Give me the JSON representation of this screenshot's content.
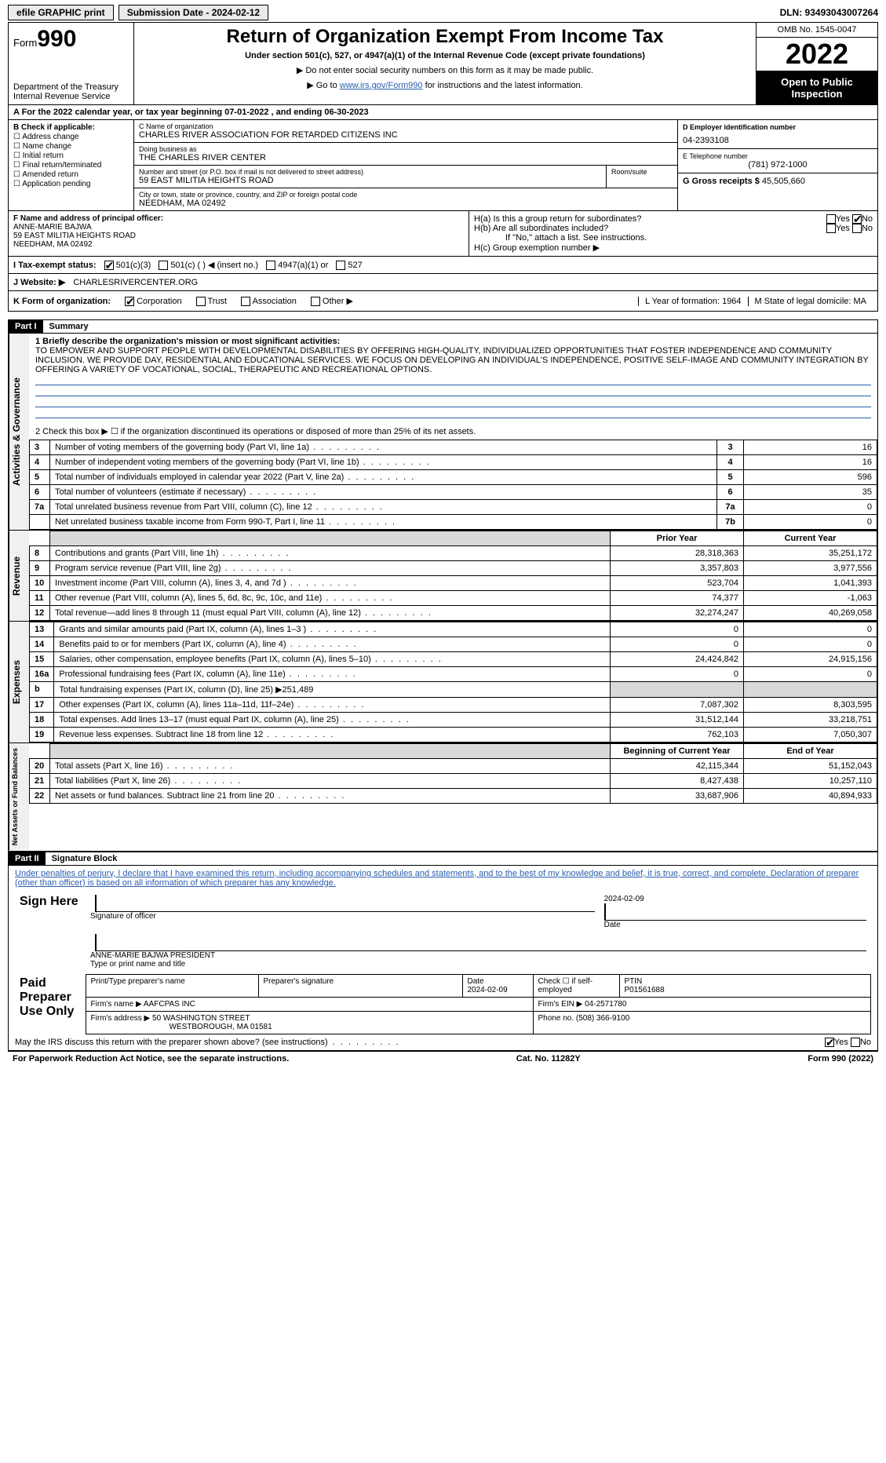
{
  "topbar": {
    "efile": "efile GRAPHIC print",
    "submission_label": "Submission Date - 2024-02-12",
    "dln": "DLN: 93493043007264"
  },
  "header": {
    "form_word": "Form",
    "form_num": "990",
    "dept": "Department of the Treasury",
    "irs": "Internal Revenue Service",
    "title": "Return of Organization Exempt From Income Tax",
    "sub": "Under section 501(c), 527, or 4947(a)(1) of the Internal Revenue Code (except private foundations)",
    "arrow1": "▶ Do not enter social security numbers on this form as it may be made public.",
    "arrow2_pre": "▶ Go to ",
    "arrow2_link": "www.irs.gov/Form990",
    "arrow2_post": " for instructions and the latest information.",
    "omb": "OMB No. 1545-0047",
    "year": "2022",
    "opi": "Open to Public Inspection"
  },
  "cal": "A  For the 2022 calendar year, or tax year beginning 07-01-2022    , and ending 06-30-2023",
  "boxB": {
    "title": "B Check if applicable:",
    "opts": [
      "Address change",
      "Name change",
      "Initial return",
      "Final return/terminated",
      "Amended return",
      "Application pending"
    ]
  },
  "boxC": {
    "name_lbl": "C Name of organization",
    "name": "CHARLES RIVER ASSOCIATION FOR RETARDED CITIZENS INC",
    "dba_lbl": "Doing business as",
    "dba": "THE CHARLES RIVER CENTER",
    "addr_lbl": "Number and street (or P.O. box if mail is not delivered to street address)",
    "addr": "59 EAST MILITIA HEIGHTS ROAD",
    "room_lbl": "Room/suite",
    "city_lbl": "City or town, state or province, country, and ZIP or foreign postal code",
    "city": "NEEDHAM, MA  02492"
  },
  "boxD": {
    "lbl": "D Employer identification number",
    "val": "04-2393108"
  },
  "boxE": {
    "lbl": "E Telephone number",
    "val": "(781) 972-1000"
  },
  "boxG": {
    "lbl": "G Gross receipts $",
    "val": "45,505,660"
  },
  "boxF": {
    "lbl": "F Name and address of principal officer:",
    "l1": "ANNE-MARIE BAJWA",
    "l2": "59 EAST MILITIA HEIGHTS ROAD",
    "l3": "NEEDHAM, MA  02492"
  },
  "boxH": {
    "a": "H(a)  Is this a group return for subordinates?",
    "b": "H(b)  Are all subordinates included?",
    "ifno": "If \"No,\" attach a list. See instructions.",
    "c": "H(c)  Group exemption number ▶"
  },
  "taxstatus": {
    "lbl": "I   Tax-exempt status:",
    "o1": "501(c)(3)",
    "o2": "501(c) (  ) ◀ (insert no.)",
    "o3": "4947(a)(1) or",
    "o4": "527"
  },
  "website": {
    "lbl": "J   Website: ▶",
    "val": "CHARLESRIVERCENTER.ORG"
  },
  "korg": {
    "lbl": "K Form of organization:",
    "o1": "Corporation",
    "o2": "Trust",
    "o3": "Association",
    "o4": "Other ▶",
    "lyr": "L Year of formation: 1964",
    "mstate": "M State of legal domicile: MA"
  },
  "part1": {
    "hdr": "Part I",
    "title": "Summary"
  },
  "summary": {
    "q1": "1  Briefly describe the organization's mission or most significant activities:",
    "mission": "TO EMPOWER AND SUPPORT PEOPLE WITH DEVELOPMENTAL DISABILITIES BY OFFERING HIGH-QUALITY, INDIVIDUALIZED OPPORTUNITIES THAT FOSTER INDEPENDENCE AND COMMUNITY INCLUSION. WE PROVIDE DAY, RESIDENTIAL AND EDUCATIONAL SERVICES. WE FOCUS ON DEVELOPING AN INDIVIDUAL'S INDEPENDENCE, POSITIVE SELF-IMAGE AND COMMUNITY INTEGRATION BY OFFERING A VARIETY OF VOCATIONAL, SOCIAL, THERAPEUTIC AND RECREATIONAL OPTIONS.",
    "q2": "2   Check this box ▶ ☐  if the organization discontinued its operations or disposed of more than 25% of its net assets.",
    "rows_ag": [
      {
        "n": "3",
        "d": "Number of voting members of the governing body (Part VI, line 1a)",
        "k": "3",
        "v": "16"
      },
      {
        "n": "4",
        "d": "Number of independent voting members of the governing body (Part VI, line 1b)",
        "k": "4",
        "v": "16"
      },
      {
        "n": "5",
        "d": "Total number of individuals employed in calendar year 2022 (Part V, line 2a)",
        "k": "5",
        "v": "596"
      },
      {
        "n": "6",
        "d": "Total number of volunteers (estimate if necessary)",
        "k": "6",
        "v": "35"
      },
      {
        "n": "7a",
        "d": "Total unrelated business revenue from Part VIII, column (C), line 12",
        "k": "7a",
        "v": "0"
      },
      {
        "n": "",
        "d": "Net unrelated business taxable income from Form 990-T, Part I, line 11",
        "k": "7b",
        "v": "0"
      }
    ],
    "priorhdr": "Prior Year",
    "curhdr": "Current Year",
    "rows_rev": [
      {
        "n": "8",
        "d": "Contributions and grants (Part VIII, line 1h)",
        "p": "28,318,363",
        "c": "35,251,172"
      },
      {
        "n": "9",
        "d": "Program service revenue (Part VIII, line 2g)",
        "p": "3,357,803",
        "c": "3,977,556"
      },
      {
        "n": "10",
        "d": "Investment income (Part VIII, column (A), lines 3, 4, and 7d )",
        "p": "523,704",
        "c": "1,041,393"
      },
      {
        "n": "11",
        "d": "Other revenue (Part VIII, column (A), lines 5, 6d, 8c, 9c, 10c, and 11e)",
        "p": "74,377",
        "c": "-1,063"
      },
      {
        "n": "12",
        "d": "Total revenue—add lines 8 through 11 (must equal Part VIII, column (A), line 12)",
        "p": "32,274,247",
        "c": "40,269,058"
      }
    ],
    "rows_exp": [
      {
        "n": "13",
        "d": "Grants and similar amounts paid (Part IX, column (A), lines 1–3 )",
        "p": "0",
        "c": "0"
      },
      {
        "n": "14",
        "d": "Benefits paid to or for members (Part IX, column (A), line 4)",
        "p": "0",
        "c": "0"
      },
      {
        "n": "15",
        "d": "Salaries, other compensation, employee benefits (Part IX, column (A), lines 5–10)",
        "p": "24,424,842",
        "c": "24,915,156"
      },
      {
        "n": "16a",
        "d": "Professional fundraising fees (Part IX, column (A), line 11e)",
        "p": "0",
        "c": "0"
      },
      {
        "n": "b",
        "d": "Total fundraising expenses (Part IX, column (D), line 25) ▶251,489",
        "p": "",
        "c": "",
        "grey": true
      },
      {
        "n": "17",
        "d": "Other expenses (Part IX, column (A), lines 11a–11d, 11f–24e)",
        "p": "7,087,302",
        "c": "8,303,595"
      },
      {
        "n": "18",
        "d": "Total expenses. Add lines 13–17 (must equal Part IX, column (A), line 25)",
        "p": "31,512,144",
        "c": "33,218,751"
      },
      {
        "n": "19",
        "d": "Revenue less expenses. Subtract line 18 from line 12",
        "p": "762,103",
        "c": "7,050,307"
      }
    ],
    "bocy": "Beginning of Current Year",
    "eoy": "End of Year",
    "rows_na": [
      {
        "n": "20",
        "d": "Total assets (Part X, line 16)",
        "p": "42,115,344",
        "c": "51,152,043"
      },
      {
        "n": "21",
        "d": "Total liabilities (Part X, line 26)",
        "p": "8,427,438",
        "c": "10,257,110"
      },
      {
        "n": "22",
        "d": "Net assets or fund balances. Subtract line 21 from line 20",
        "p": "33,687,906",
        "c": "40,894,933"
      }
    ],
    "side_ag": "Activities & Governance",
    "side_rev": "Revenue",
    "side_exp": "Expenses",
    "side_na": "Net Assets or Fund Balances"
  },
  "part2": {
    "hdr": "Part II",
    "title": "Signature Block"
  },
  "sig": {
    "decl": "Under penalties of perjury, I declare that I have examined this return, including accompanying schedules and statements, and to the best of my knowledge and belief, it is true, correct, and complete. Declaration of preparer (other than officer) is based on all information of which preparer has any knowledge.",
    "sign_here": "Sign Here",
    "sig_officer": "Signature of officer",
    "date": "Date",
    "date_val": "2024-02-09",
    "name_title": "ANNE-MARIE BAJWA PRESIDENT",
    "name_title_lbl": "Type or print name and title",
    "paid": "Paid Preparer Use Only",
    "prep_name_lbl": "Print/Type preparer's name",
    "prep_sig_lbl": "Preparer's signature",
    "prep_date_lbl": "Date",
    "prep_date": "2024-02-09",
    "self_emp": "Check ☐ if self-employed",
    "ptin_lbl": "PTIN",
    "ptin": "P01561688",
    "firm_name_lbl": "Firm's name  ▶",
    "firm_name": "AAFCPAS INC",
    "firm_ein_lbl": "Firm's EIN ▶",
    "firm_ein": "04-2571780",
    "firm_addr_lbl": "Firm's address ▶",
    "firm_addr1": "50 WASHINGTON STREET",
    "firm_addr2": "WESTBOROUGH, MA  01581",
    "phone_lbl": "Phone no.",
    "phone": "(508) 366-9100",
    "may_irs": "May the IRS discuss this return with the preparer shown above? (see instructions)"
  },
  "footer": {
    "pra": "For Paperwork Reduction Act Notice, see the separate instructions.",
    "cat": "Cat. No. 11282Y",
    "form": "Form 990 (2022)"
  },
  "yesno": {
    "yes": "Yes",
    "no": "No"
  }
}
